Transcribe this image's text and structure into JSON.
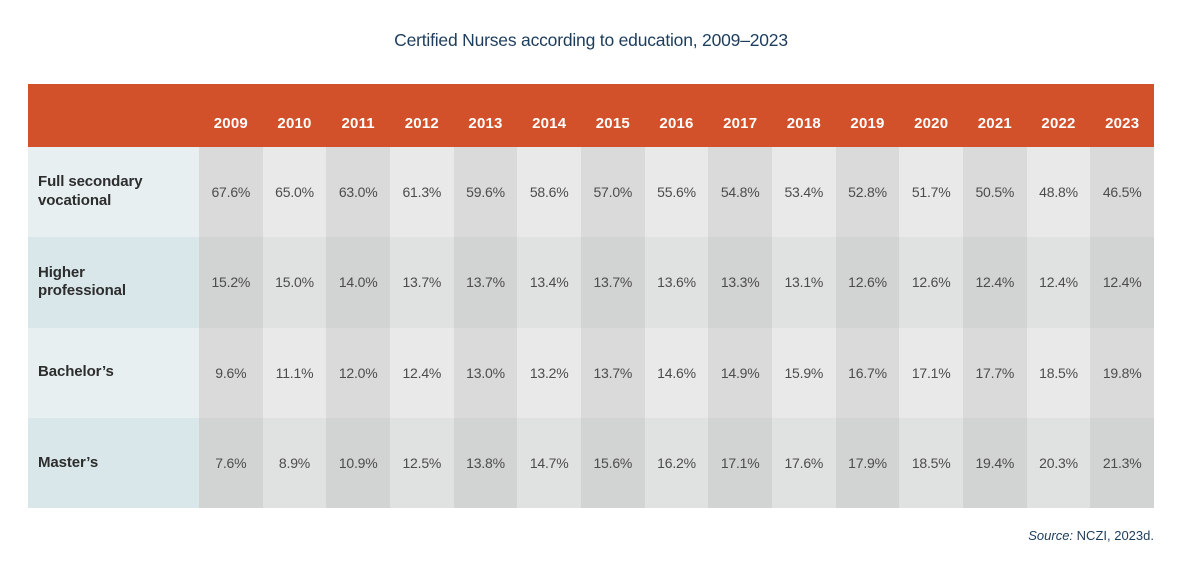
{
  "title": "Certified Nurses according to education, 2009–2023",
  "source": {
    "label": "Source:",
    "text": "NCZI, 2023d."
  },
  "colors": {
    "header_bg": "#d3512a",
    "header_text": "#ffffff",
    "label_col_light": "#e7eff1",
    "label_col_dark": "#d9e7ea",
    "cell_dark_light_row": "#dadada",
    "cell_light_light_row": "#e9e9e9",
    "cell_dark_dark_row": "#d2d3d3",
    "cell_light_dark_row": "#e0e1e1",
    "title_text": "#1d3d5d",
    "value_text": "#4c4c4c",
    "row_label_text": "#2d2d2d"
  },
  "chart_data": {
    "type": "table",
    "title": "Certified Nurses according to education, 2009–2023",
    "unit": "%",
    "columns": [
      "2009",
      "2010",
      "2011",
      "2012",
      "2013",
      "2014",
      "2015",
      "2016",
      "2017",
      "2018",
      "2019",
      "2020",
      "2021",
      "2022",
      "2023"
    ],
    "rows": [
      {
        "label": "Full secondary vocational",
        "values": [
          67.6,
          65.0,
          63.0,
          61.3,
          59.6,
          58.6,
          57.0,
          55.6,
          54.8,
          53.4,
          52.8,
          51.7,
          50.5,
          48.8,
          46.5
        ]
      },
      {
        "label": "Higher professional",
        "values": [
          15.2,
          15.0,
          14.0,
          13.7,
          13.7,
          13.4,
          13.7,
          13.6,
          13.3,
          13.1,
          12.6,
          12.6,
          12.4,
          12.4,
          12.4
        ]
      },
      {
        "label": "Bachelor’s",
        "values": [
          9.6,
          11.1,
          12.0,
          12.4,
          13.0,
          13.2,
          13.7,
          14.6,
          14.9,
          15.9,
          16.7,
          17.1,
          17.7,
          18.5,
          19.8
        ]
      },
      {
        "label": "Master’s",
        "values": [
          7.6,
          8.9,
          10.9,
          12.5,
          13.8,
          14.7,
          15.6,
          16.2,
          17.1,
          17.6,
          17.9,
          18.5,
          19.4,
          20.3,
          21.3
        ]
      }
    ]
  }
}
